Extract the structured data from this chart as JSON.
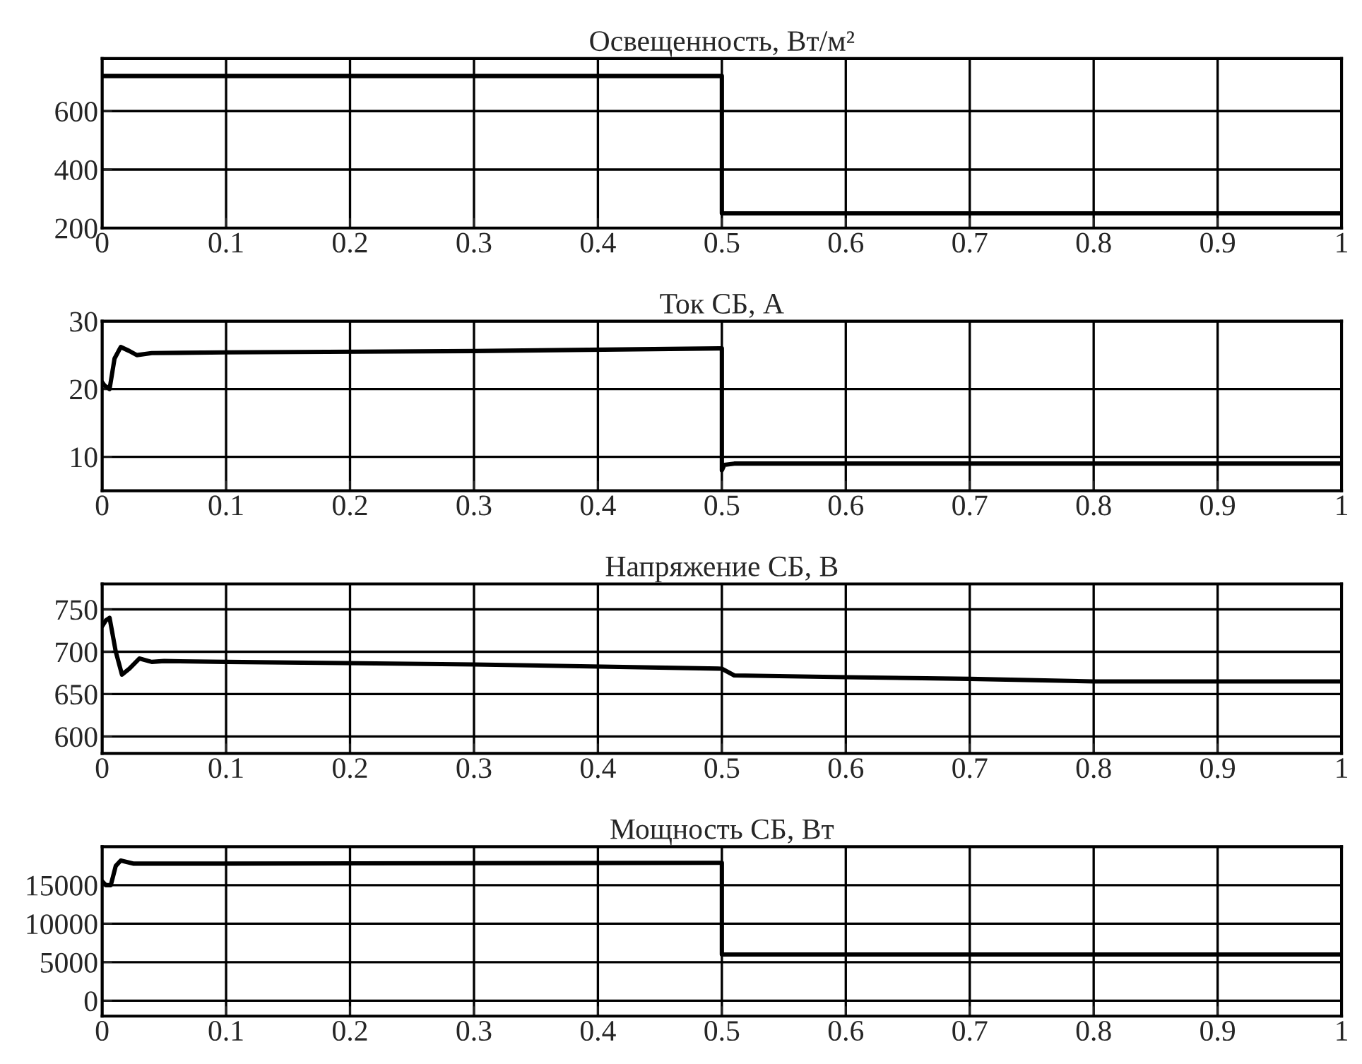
{
  "chart_data": [
    {
      "type": "line",
      "title": "Освещенность, Вт/м²",
      "xlim": [
        0,
        1
      ],
      "xticks": [
        0,
        0.1,
        0.2,
        0.3,
        0.4,
        0.5,
        0.6,
        0.7,
        0.8,
        0.9,
        1
      ],
      "ylim": [
        200,
        780
      ],
      "yticks": [
        200,
        400,
        600
      ],
      "grid": true,
      "series": [
        {
          "color": "#000000",
          "x": [
            0,
            0.5,
            0.5,
            1
          ],
          "values": [
            720,
            720,
            250,
            250
          ]
        }
      ]
    },
    {
      "type": "line",
      "title": "Ток СБ, А",
      "xlim": [
        0,
        1
      ],
      "xticks": [
        0,
        0.1,
        0.2,
        0.3,
        0.4,
        0.5,
        0.6,
        0.7,
        0.8,
        0.9,
        1
      ],
      "ylim": [
        5,
        30
      ],
      "yticks": [
        10,
        20,
        30
      ],
      "grid": true,
      "series": [
        {
          "color": "#000000",
          "x": [
            0,
            0.002,
            0.006,
            0.01,
            0.015,
            0.022,
            0.028,
            0.04,
            0.1,
            0.3,
            0.5,
            0.5,
            0.502,
            0.51,
            1
          ],
          "values": [
            21,
            20.5,
            20,
            24.5,
            26.2,
            25.6,
            25,
            25.3,
            25.4,
            25.6,
            26,
            8,
            8.8,
            9,
            9
          ]
        }
      ]
    },
    {
      "type": "line",
      "title": "Напряжение СБ, В",
      "xlim": [
        0,
        1
      ],
      "xticks": [
        0,
        0.1,
        0.2,
        0.3,
        0.4,
        0.5,
        0.6,
        0.7,
        0.8,
        0.9,
        1
      ],
      "ylim": [
        580,
        780
      ],
      "yticks": [
        600,
        650,
        700,
        750
      ],
      "grid": true,
      "series": [
        {
          "color": "#000000",
          "x": [
            0,
            0.003,
            0.006,
            0.011,
            0.016,
            0.022,
            0.03,
            0.04,
            0.05,
            0.1,
            0.3,
            0.5,
            0.51,
            0.6,
            0.7,
            0.8,
            1
          ],
          "values": [
            730,
            737,
            740,
            700,
            673,
            680,
            692,
            688,
            689,
            688,
            685,
            680,
            672,
            670,
            668,
            665,
            665
          ]
        }
      ]
    },
    {
      "type": "line",
      "title": "Мощность СБ, Вт",
      "xlim": [
        0,
        1
      ],
      "xticks": [
        0,
        0.1,
        0.2,
        0.3,
        0.4,
        0.5,
        0.6,
        0.7,
        0.8,
        0.9,
        1
      ],
      "ylim": [
        -2000,
        20000
      ],
      "yticks": [
        0,
        5000,
        10000,
        15000
      ],
      "grid": true,
      "series": [
        {
          "color": "#000000",
          "x": [
            0,
            0.003,
            0.007,
            0.011,
            0.015,
            0.025,
            0.1,
            0.5,
            0.5,
            1
          ],
          "values": [
            15500,
            15000,
            15000,
            17500,
            18200,
            17800,
            17800,
            17900,
            6000,
            6000
          ]
        }
      ]
    }
  ]
}
